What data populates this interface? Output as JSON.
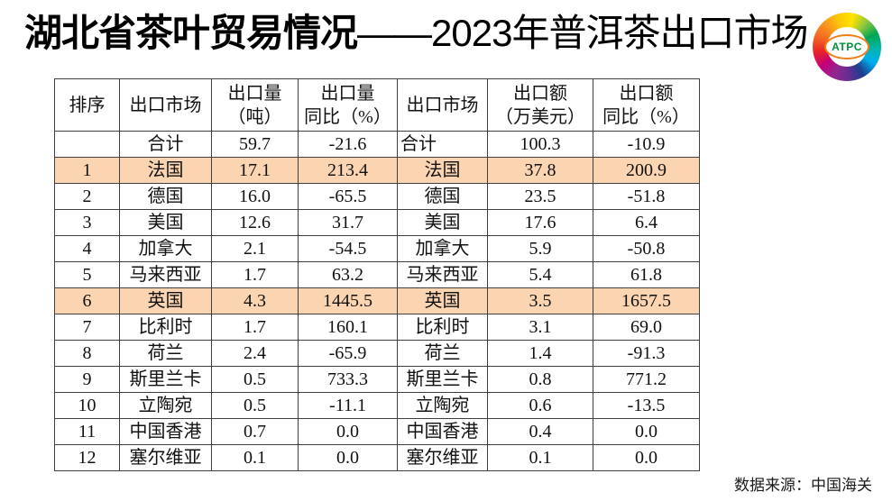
{
  "title": {
    "main": "湖北省茶叶贸易情况",
    "sub": "——2023年普洱茶出口市场"
  },
  "logo": {
    "text": "ATPC"
  },
  "table": {
    "headers": [
      "排序",
      "出口市场",
      "出口量\n（吨）",
      "出口量\n同比（%）",
      "出口市场",
      "出口额\n（万美元）",
      "出口额\n同比（%）"
    ],
    "rows": [
      {
        "cells": [
          "",
          "合计",
          "59.7",
          "-21.6",
          "合计",
          "100.3",
          "-10.9"
        ],
        "highlight": false,
        "total_row": true
      },
      {
        "cells": [
          "1",
          "法国",
          "17.1",
          "213.4",
          "法国",
          "37.8",
          "200.9"
        ],
        "highlight": true
      },
      {
        "cells": [
          "2",
          "德国",
          "16.0",
          "-65.5",
          "德国",
          "23.5",
          "-51.8"
        ],
        "highlight": false
      },
      {
        "cells": [
          "3",
          "美国",
          "12.6",
          "31.7",
          "美国",
          "17.6",
          "6.4"
        ],
        "highlight": false
      },
      {
        "cells": [
          "4",
          "加拿大",
          "2.1",
          "-54.5",
          "加拿大",
          "5.9",
          "-50.8"
        ],
        "highlight": false
      },
      {
        "cells": [
          "5",
          "马来西亚",
          "1.7",
          "63.2",
          "马来西亚",
          "5.4",
          "61.8"
        ],
        "highlight": false
      },
      {
        "cells": [
          "6",
          "英国",
          "4.3",
          "1445.5",
          "英国",
          "3.5",
          "1657.5"
        ],
        "highlight": true
      },
      {
        "cells": [
          "7",
          "比利时",
          "1.7",
          "160.1",
          "比利时",
          "3.1",
          "69.0"
        ],
        "highlight": false
      },
      {
        "cells": [
          "8",
          "荷兰",
          "2.4",
          "-65.9",
          "荷兰",
          "1.4",
          "-91.3"
        ],
        "highlight": false
      },
      {
        "cells": [
          "9",
          "斯里兰卡",
          "0.5",
          "733.3",
          "斯里兰卡",
          "0.8",
          "771.2"
        ],
        "highlight": false
      },
      {
        "cells": [
          "10",
          "立陶宛",
          "0.5",
          "-11.1",
          "立陶宛",
          "0.6",
          "-13.5"
        ],
        "highlight": false
      },
      {
        "cells": [
          "11",
          "中国香港",
          "0.7",
          "0.0",
          "中国香港",
          "0.4",
          "0.0"
        ],
        "highlight": false
      },
      {
        "cells": [
          "12",
          "塞尔维亚",
          "0.1",
          "0.0",
          "塞尔维亚",
          "0.1",
          "0.0"
        ],
        "highlight": false
      }
    ]
  },
  "footer": {
    "source": "数据来源：中国海关"
  },
  "colors": {
    "highlight": "#fbd4b2",
    "border": "#3f3f3f",
    "title_text": "#000000",
    "logo_badge_border": "#f07d12",
    "logo_text": "#00913a"
  }
}
